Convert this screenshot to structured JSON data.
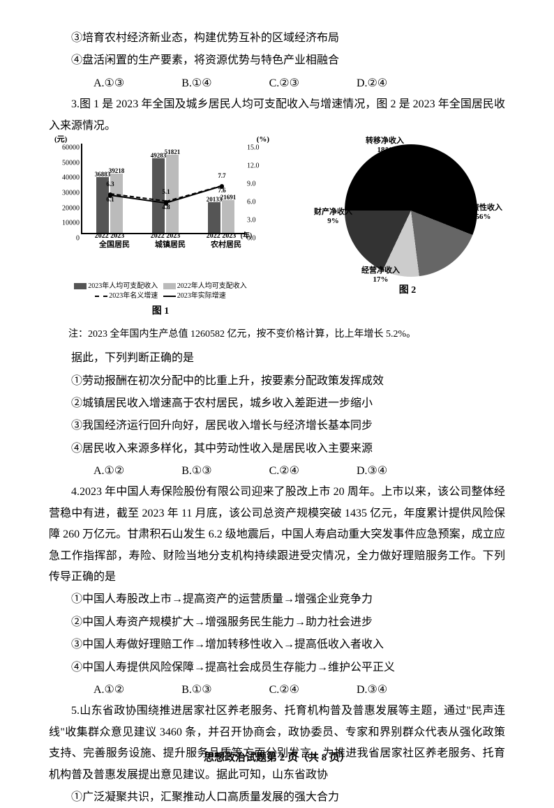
{
  "q2": {
    "item3": "③培育农村经济新业态，构建优势互补的区域经济布局",
    "item4": "④盘活闲置的生产要素，将资源优势与特色产业相融合",
    "optA": "A.①③",
    "optB": "B.①④",
    "optC": "C.②③",
    "optD": "D.②④"
  },
  "q3": {
    "intro": "3.图 1 是 2023 年全国及城乡居民人均可支配收入与增速情况，图 2 是 2023 年全国居民收入来源情况。",
    "note": "注：2023 全年国内生产总值 1260582 亿元，按不变价格计算，比上年增长 5.2%。",
    "ask": "据此，下列判断正确的是",
    "s1": "①劳动报酬在初次分配中的比重上升，按要素分配政策发挥成效",
    "s2": "②城镇居民收入增速高于农村居民，城乡收入差距进一步缩小",
    "s3": "③我国经济运行回升向好，居民收入增长与经济增长基本同步",
    "s4": "④居民收入来源多样化，其中劳动性收入是居民收入主要来源",
    "optA": "A.①②",
    "optB": "B.①③",
    "optC": "C.②④",
    "optD": "D.③④"
  },
  "q4": {
    "intro": "4.2023 年中国人寿保险股份有限公司迎来了股改上市 20 周年。上市以来，该公司整体经营稳中有进，截至 2023 年 11 月底，该公司总资产规模突破 1435 亿元，年度累计提供风险保障 260 万亿元。甘肃积石山发生 6.2 级地震后，中国人寿启动重大突发事件应急预案，成立应急工作指挥部，寿险、财险当地分支机构持续跟进受灾情况，全力做好理赔服务工作。下列传导正确的是",
    "s1": "①中国人寿股改上市→提高资产的运营质量→增强企业竞争力",
    "s2": "②中国人寿资产规模扩大→增强服务民生能力→助力社会进步",
    "s3": "③中国人寿做好理赔工作→增加转移性收入→提高低收入者收入",
    "s4": "④中国人寿提供风险保障→提高社会成员生存能力→维护公平正义",
    "optA": "A.①②",
    "optB": "B.①③",
    "optC": "C.②④",
    "optD": "D.③④"
  },
  "q5": {
    "intro": "5.山东省政协围绕推进居家社区养老服务、托育机构普及普惠发展等主题，通过\"民声连线\"收集群众意见建议 3460 条，并召开协商会，政协委员、专家和界别群众代表从强化政策支持、完善服务设施、提升服务品质等方面分别发言，为推进我省居家社区养老服务、托育机构普及普惠发展提出意见建议。据此可知，山东省政协",
    "s1": "①广泛凝聚共识，汇聚推动人口高质量发展的强大合力"
  },
  "chart1": {
    "ylabel_l": "(元)",
    "ylabel_r": "(%)",
    "yl_max": 60000,
    "yl_ticks": [
      0,
      10000,
      20000,
      30000,
      40000,
      50000,
      60000
    ],
    "yr_max": 15,
    "yr_ticks": [
      0,
      3,
      6,
      9,
      12,
      15
    ],
    "groups": [
      "全国居民",
      "城镇居民",
      "农村居民"
    ],
    "years": [
      "2022",
      "2023"
    ],
    "xlabel_r": "(年)",
    "bars": [
      {
        "group": 0,
        "year": 0,
        "value": 36883,
        "color": "#555555"
      },
      {
        "group": 0,
        "year": 1,
        "value": 39218,
        "color": "#bbbbbb"
      },
      {
        "group": 1,
        "year": 0,
        "value": 49283,
        "color": "#555555"
      },
      {
        "group": 1,
        "year": 1,
        "value": 51821,
        "color": "#bbbbbb"
      },
      {
        "group": 2,
        "year": 0,
        "value": 20133,
        "color": "#555555"
      },
      {
        "group": 2,
        "year": 1,
        "value": 21691,
        "color": "#bbbbbb"
      }
    ],
    "line1": {
      "label": "名义增速",
      "values": [
        6.3,
        5.1,
        7.7
      ],
      "style": "dashed"
    },
    "line2": {
      "label": "实际增速",
      "values": [
        6.1,
        4.8,
        7.6
      ],
      "style": "solid"
    },
    "legend": {
      "a": "2023年人均可支配收入",
      "b": "2022年人均可支配收入",
      "c": "2023年名义增速",
      "d": "2023年实际增速"
    },
    "caption": "图 1"
  },
  "chart2": {
    "slices": [
      {
        "label": "工资性收入",
        "pct": 56,
        "color": "#000000"
      },
      {
        "label": "经营净收入",
        "pct": 17,
        "color": "#666666"
      },
      {
        "label": "财产净收入",
        "pct": 9,
        "color": "#cccccc"
      },
      {
        "label": "转移净收入",
        "pct": 18,
        "color": "#333333"
      }
    ],
    "caption": "图 2"
  },
  "footer": "思想政治试题第 2 页（共 8 页）"
}
